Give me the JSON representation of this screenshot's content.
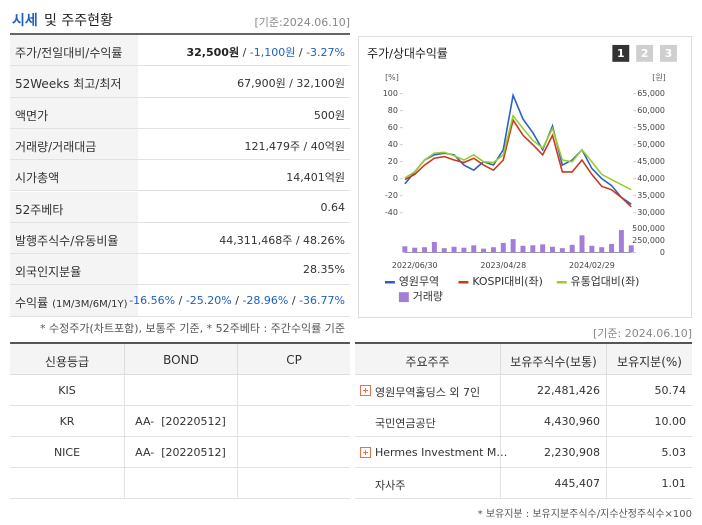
{
  "header": {
    "title_main": "시세",
    "title_rest": "및 주주현황",
    "date": "[기준:2024.06.10]"
  },
  "quote_table": {
    "rows": [
      {
        "label": [
          "주가/전일대비/수익률"
        ],
        "value": [
          "32,500원",
          " / ",
          "-1,100원",
          " / ",
          "-3.27%"
        ]
      },
      {
        "label": [
          "52Weeks 최고/최저"
        ],
        "value": [
          "67,900원 / 32,100원"
        ]
      },
      {
        "label": [
          "액면가"
        ],
        "value": [
          "500원"
        ]
      },
      {
        "label": [
          "거래량/거래대금"
        ],
        "value": [
          "121,479주 / 40억원"
        ]
      },
      {
        "label": [
          "시가총액"
        ],
        "value": [
          "14,401억원"
        ]
      },
      {
        "label": [
          "52주베타"
        ],
        "value": [
          "0.64"
        ]
      },
      {
        "label": [
          "발행주식수/유동비율"
        ],
        "value": [
          "44,311,468주 / 48.26%"
        ]
      },
      {
        "label": [
          "외국인지분율"
        ],
        "value": [
          "28.35%"
        ]
      },
      {
        "label": [
          "수익률",
          "(1M/3M/6M/1Y)"
        ],
        "value": [
          "-16.56%",
          " / ",
          "-25.20%",
          " / ",
          "-28.96%",
          " / ",
          "-36.77%"
        ]
      }
    ],
    "note": "* 수정주가(차트포함), 보통주 기준, * 52주베타 : 주간수익률 기준"
  },
  "chart_tabs": [
    "1",
    "2",
    "3"
  ],
  "chart_data": {
    "type": "line",
    "title": "주가/상대수익률",
    "ylabel": "[%]",
    "y2label": "[원]",
    "categories": [
      null,
      "2022/06/30",
      null,
      null,
      null,
      null,
      null,
      null,
      null,
      null,
      "2023/04/28",
      null,
      null,
      null,
      null,
      null,
      null,
      null,
      null,
      "2024/02/29",
      null,
      null,
      null,
      null
    ],
    "ylim": [
      -40,
      100
    ],
    "yticks": [
      -40,
      -20,
      0,
      20,
      40,
      60,
      80,
      100
    ],
    "y2lim": [
      30000,
      65000
    ],
    "y2ticks": [
      {
        "value": 30000,
        "label": "30,000"
      },
      {
        "value": 35000,
        "label": "35,000"
      },
      {
        "value": 40000,
        "label": "40,000"
      },
      {
        "value": 45000,
        "label": "45,000"
      },
      {
        "value": 50000,
        "label": "50,000"
      },
      {
        "value": 55000,
        "label": "55,000"
      },
      {
        "value": 60000,
        "label": "60,000"
      },
      {
        "value": 65000,
        "label": "65,000"
      }
    ],
    "y3lim": [
      0,
      500000
    ],
    "y3ticks": [
      0,
      {
        "value": 250000,
        "label": "250,000"
      },
      {
        "value": 500000,
        "label": "500,000"
      }
    ],
    "grid": false,
    "series": [
      {
        "name": "영원무역",
        "color": "#2a62c4",
        "axis": "y2",
        "values": [
          38500,
          42000,
          45500,
          47000,
          47500,
          47000,
          44000,
          42500,
          45000,
          44000,
          48500,
          64500,
          57500,
          53500,
          48500,
          55500,
          44000,
          45500,
          48500,
          43000,
          40000,
          38000,
          34500,
          32500
        ]
      },
      {
        "name": "KOSPI대비(좌)",
        "color": "#c9381e",
        "values": [
          -1,
          5,
          16,
          24,
          26,
          22,
          19,
          24,
          16,
          10,
          22,
          69,
          51,
          40,
          28,
          51,
          8,
          8,
          22,
          5,
          -9,
          -13,
          -22,
          -33
        ]
      },
      {
        "name": "유통업대비(좌)",
        "color": "#9ccc2c",
        "values": [
          1,
          8,
          22,
          30,
          31,
          27,
          22,
          28,
          20,
          19,
          28,
          74,
          59,
          45,
          36,
          59,
          22,
          20,
          34,
          20,
          5,
          -1,
          -7,
          -13
        ]
      },
      {
        "name": "거래량",
        "color": "#a27ed8",
        "type": "bar",
        "axis": "y3",
        "values": [
          130000,
          100000,
          110000,
          220000,
          90000,
          120000,
          100000,
          150000,
          80000,
          110000,
          200000,
          280000,
          140000,
          150000,
          170000,
          120000,
          90000,
          160000,
          360000,
          140000,
          110000,
          180000,
          470000,
          150000
        ]
      }
    ]
  },
  "bottom_date": "[기준: 2024.06.10]",
  "credit_table": {
    "header": [
      "신용등급",
      "BOND",
      "CP"
    ],
    "rows": [
      [
        "KIS",
        null,
        null
      ],
      [
        "KR",
        "AA-  [20220512]",
        null
      ],
      [
        "NICE",
        "AA-  [20220512]",
        null
      ]
    ]
  },
  "holder_table": {
    "header": [
      "주요주주",
      "보유주식수(보통)",
      "보유지분(%)"
    ],
    "rows": [
      {
        "name": "영원무역홀딩스 외 7인",
        "shares": "22,481,426",
        "stake": "50.74",
        "detail": true
      },
      {
        "name": "국민연금공단",
        "shares": "4,430,960",
        "stake": "10.00",
        "detail": false
      },
      {
        "name": "Hermes Investment M…",
        "shares": "2,230,908",
        "stake": "5.03",
        "detail": true
      },
      {
        "name": "자사주",
        "shares": "445,407",
        "stake": "1.01",
        "detail": false
      }
    ],
    "note": "* 보유지분 : 보유지분주식수/지수산정주식수×100"
  }
}
